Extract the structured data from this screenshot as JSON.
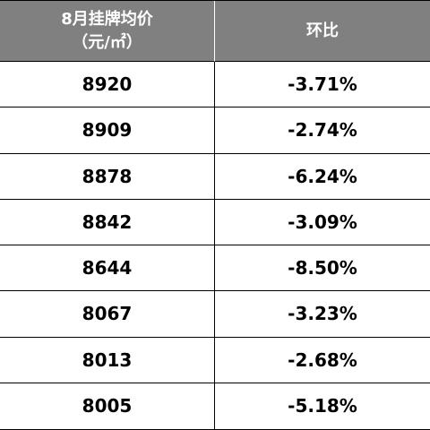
{
  "table": {
    "header": [
      [
        "8月挂牌均价",
        "（元/㎡）"
      ],
      [
        "环比"
      ]
    ],
    "rows": [
      [
        "8920",
        "-3.71%"
      ],
      [
        "8909",
        "-2.74%"
      ],
      [
        "8878",
        "-6.24%"
      ],
      [
        "8842",
        "-3.09%"
      ],
      [
        "8644",
        "-8.50%"
      ],
      [
        "8067",
        "-3.23%"
      ],
      [
        "8013",
        "-2.68%"
      ],
      [
        "8005",
        "-5.18%"
      ]
    ]
  }
}
